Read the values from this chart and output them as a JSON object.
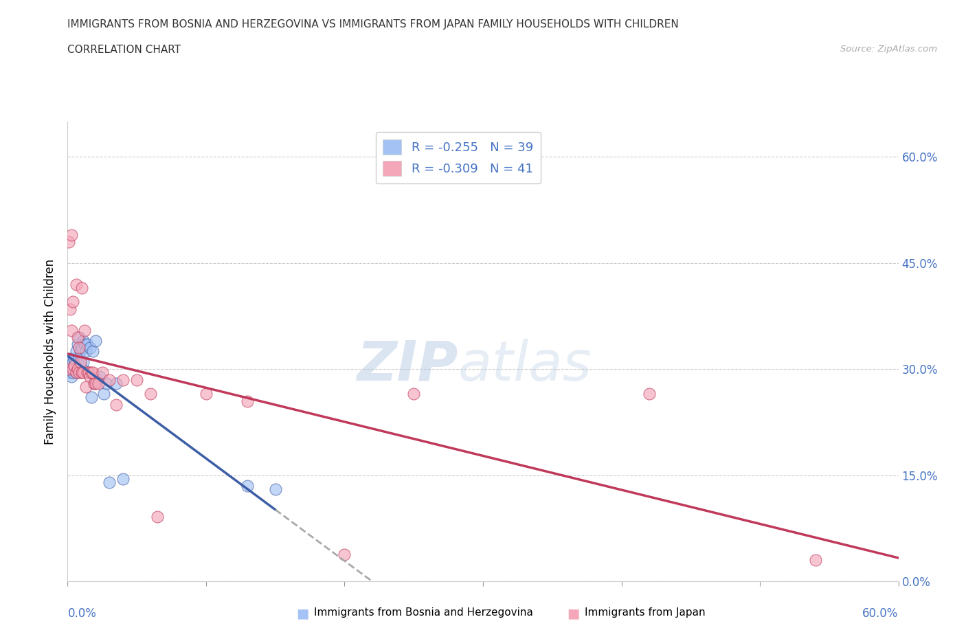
{
  "title_line1": "IMMIGRANTS FROM BOSNIA AND HERZEGOVINA VS IMMIGRANTS FROM JAPAN FAMILY HOUSEHOLDS WITH CHILDREN",
  "title_line2": "CORRELATION CHART",
  "source": "Source: ZipAtlas.com",
  "ylabel": "Family Households with Children",
  "legend_bosnia_r": "R = -0.255",
  "legend_bosnia_n": "N = 39",
  "legend_japan_r": "R = -0.309",
  "legend_japan_n": "N = 41",
  "legend_label_bosnia": "Immigrants from Bosnia and Herzegovina",
  "legend_label_japan": "Immigrants from Japan",
  "color_bosnia": "#a4c2f4",
  "color_japan": "#f4a7b9",
  "color_bosnia_line": "#3d5ea6",
  "color_japan_line": "#c0395a",
  "watermark_zip": "ZIP",
  "watermark_atlas": "atlas",
  "bosnia_x": [
    0.001,
    0.002,
    0.002,
    0.002,
    0.003,
    0.003,
    0.004,
    0.004,
    0.005,
    0.005,
    0.006,
    0.006,
    0.007,
    0.007,
    0.008,
    0.008,
    0.009,
    0.009,
    0.01,
    0.011,
    0.011,
    0.012,
    0.013,
    0.014,
    0.015,
    0.016,
    0.017,
    0.018,
    0.019,
    0.02,
    0.021,
    0.023,
    0.026,
    0.028,
    0.03,
    0.035,
    0.04,
    0.13,
    0.15
  ],
  "bosnia_y": [
    0.305,
    0.295,
    0.31,
    0.315,
    0.29,
    0.3,
    0.295,
    0.31,
    0.305,
    0.315,
    0.295,
    0.325,
    0.3,
    0.335,
    0.315,
    0.345,
    0.305,
    0.325,
    0.33,
    0.31,
    0.34,
    0.335,
    0.325,
    0.335,
    0.295,
    0.33,
    0.26,
    0.325,
    0.28,
    0.34,
    0.285,
    0.29,
    0.265,
    0.28,
    0.14,
    0.28,
    0.145,
    0.135,
    0.13
  ],
  "japan_x": [
    0.001,
    0.001,
    0.002,
    0.003,
    0.003,
    0.004,
    0.004,
    0.005,
    0.006,
    0.006,
    0.007,
    0.007,
    0.008,
    0.008,
    0.009,
    0.01,
    0.01,
    0.011,
    0.012,
    0.013,
    0.014,
    0.015,
    0.016,
    0.017,
    0.018,
    0.019,
    0.02,
    0.022,
    0.025,
    0.03,
    0.035,
    0.04,
    0.05,
    0.06,
    0.065,
    0.1,
    0.13,
    0.2,
    0.25,
    0.42,
    0.54
  ],
  "japan_y": [
    0.3,
    0.48,
    0.385,
    0.355,
    0.49,
    0.3,
    0.395,
    0.305,
    0.295,
    0.42,
    0.3,
    0.345,
    0.295,
    0.33,
    0.31,
    0.295,
    0.415,
    0.295,
    0.355,
    0.275,
    0.295,
    0.295,
    0.29,
    0.295,
    0.295,
    0.28,
    0.28,
    0.28,
    0.295,
    0.285,
    0.25,
    0.285,
    0.285,
    0.265,
    0.092,
    0.265,
    0.255,
    0.038,
    0.265,
    0.265,
    0.03
  ],
  "xlim": [
    0.0,
    0.6
  ],
  "ylim": [
    0.0,
    0.65
  ],
  "yticks": [
    0.0,
    0.15,
    0.3,
    0.45,
    0.6
  ],
  "xticks": [
    0.0,
    0.1,
    0.2,
    0.3,
    0.4,
    0.5,
    0.6
  ]
}
